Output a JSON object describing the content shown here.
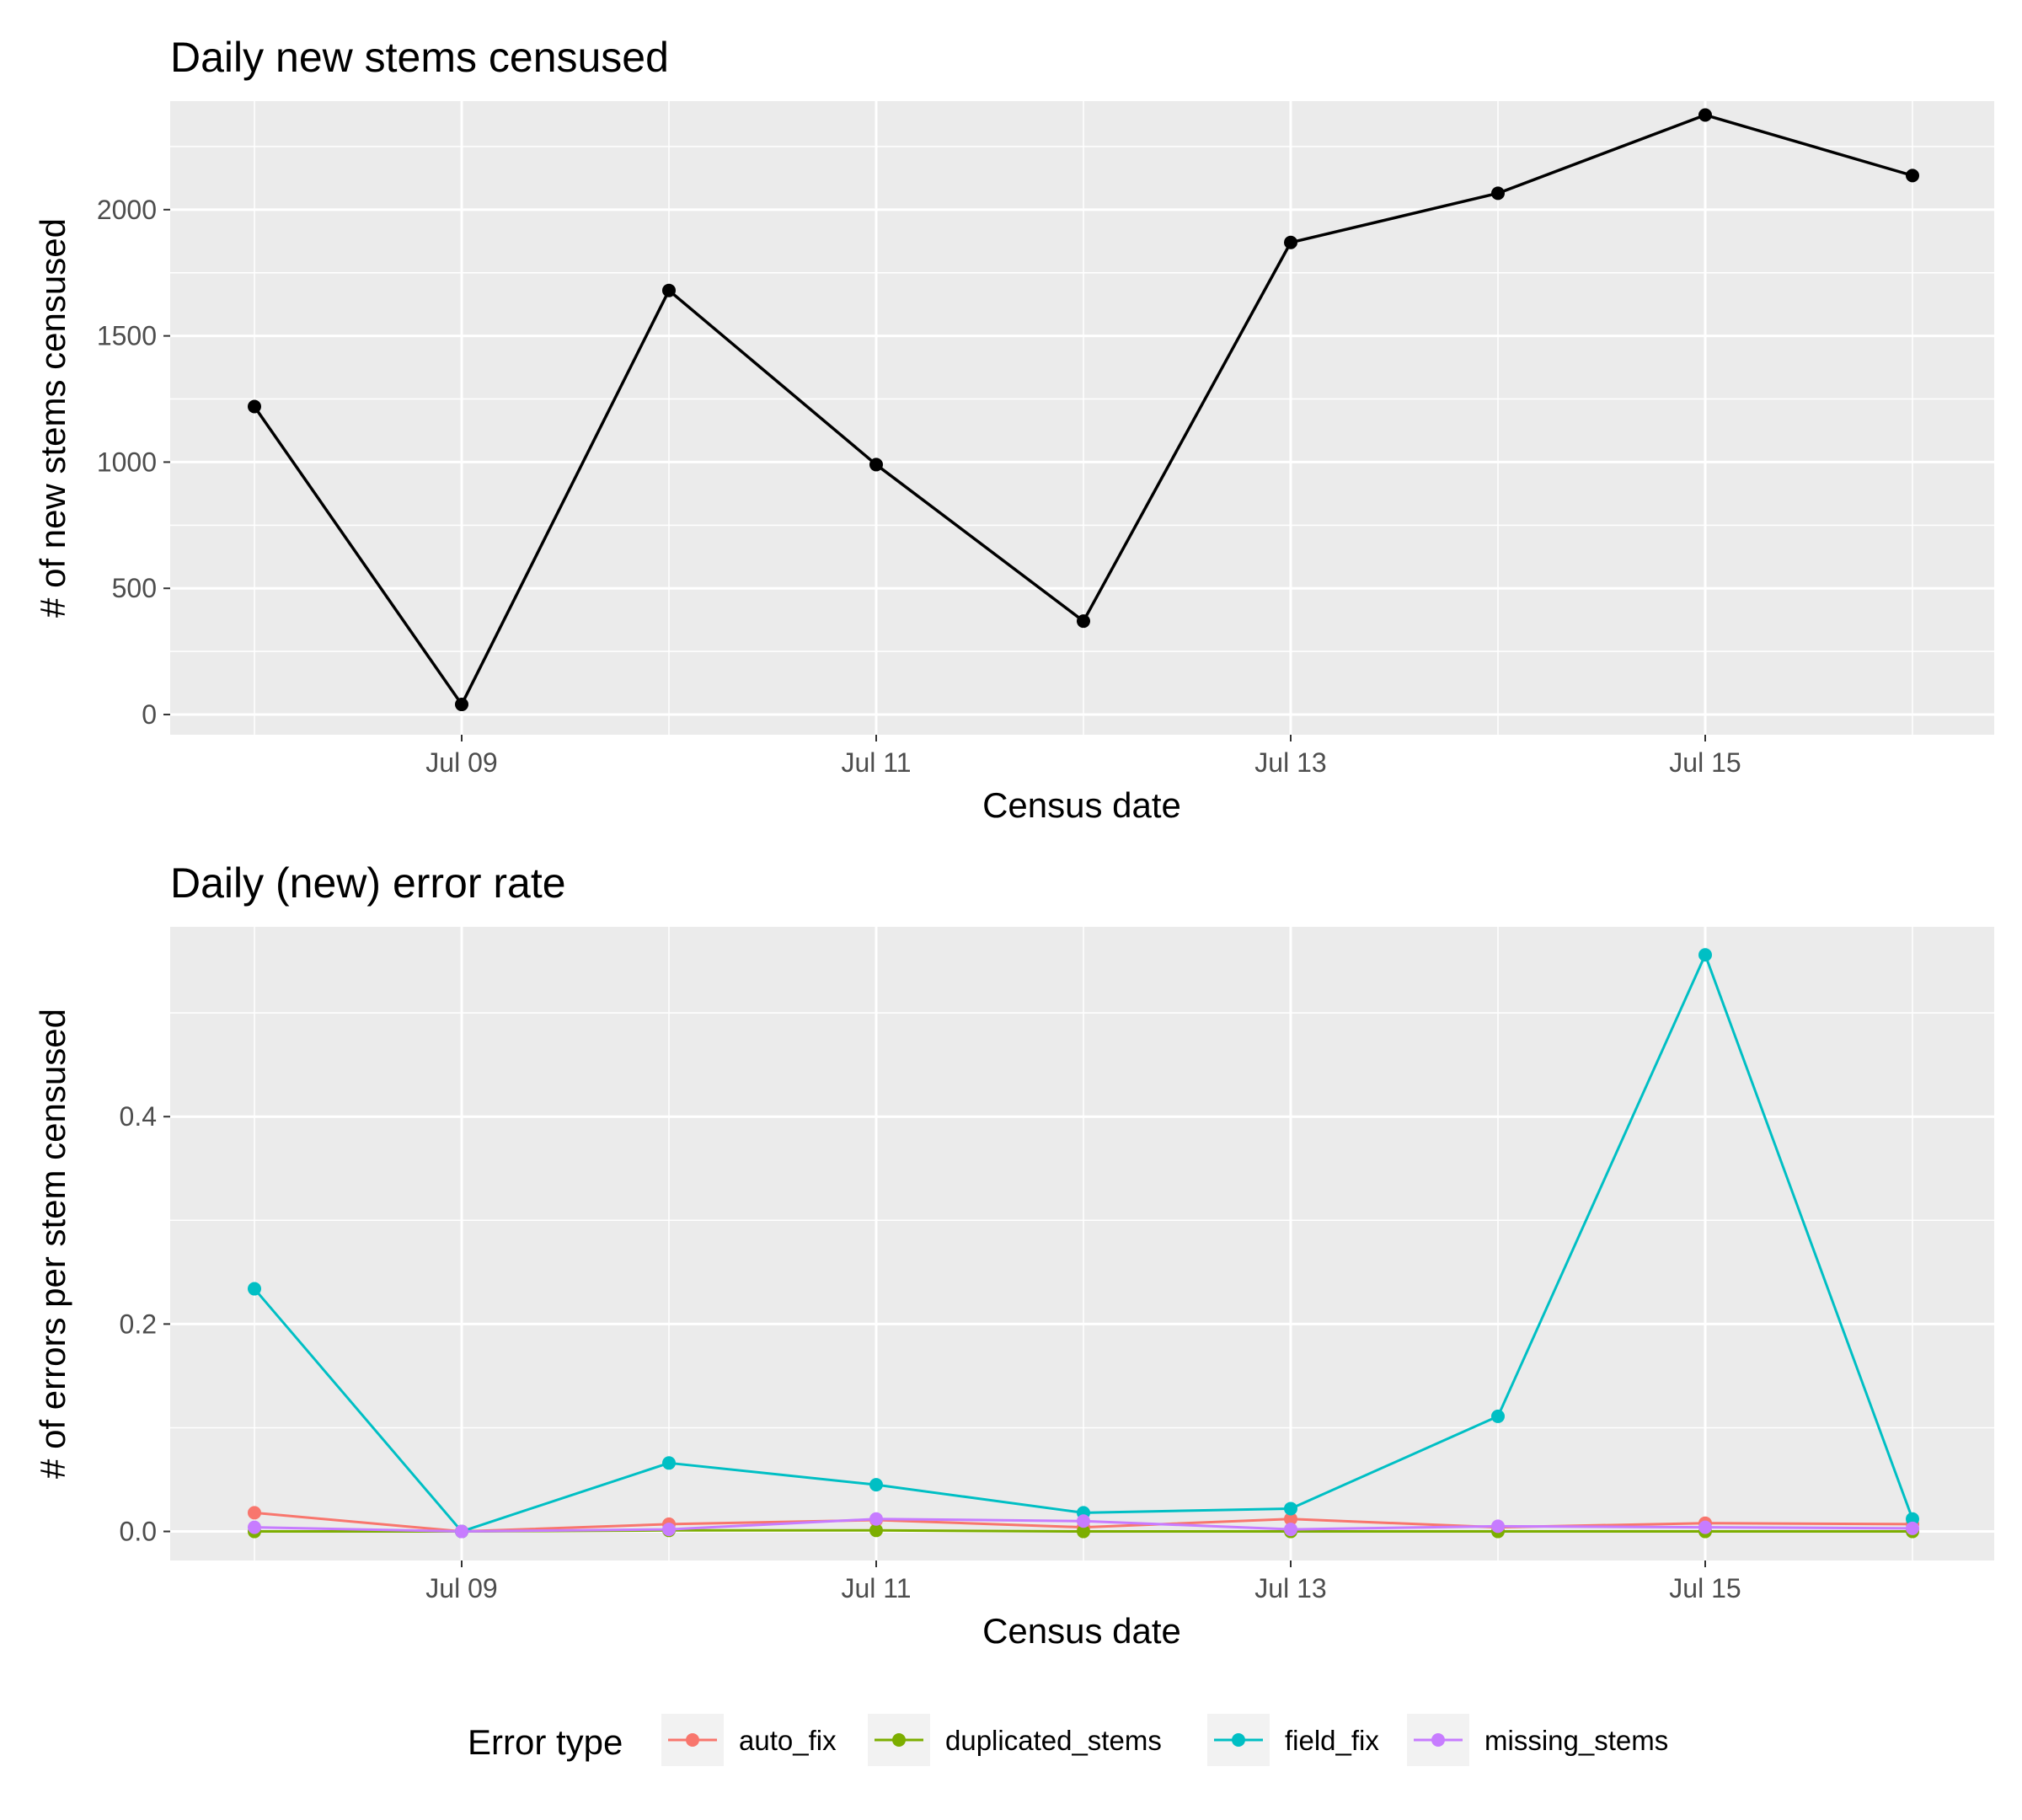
{
  "chart_data": [
    {
      "type": "line",
      "title": "Daily new stems censused",
      "xlabel": "Census date",
      "ylabel": "# of new stems censused",
      "x": [
        "Jul 08",
        "Jul 09",
        "Jul 10",
        "Jul 11",
        "Jul 12",
        "Jul 13",
        "Jul 14",
        "Jul 15",
        "Jul 16"
      ],
      "x_ticks": [
        "Jul 09",
        "Jul 11",
        "Jul 13",
        "Jul 15"
      ],
      "y_ticks": [
        0,
        500,
        1000,
        1500,
        2000
      ],
      "ylim": [
        -80,
        2430
      ],
      "grid": true,
      "series": [
        {
          "color": "#000000",
          "values": [
            1220,
            40,
            1680,
            990,
            370,
            1870,
            2065,
            2375,
            2135
          ]
        }
      ]
    },
    {
      "type": "line",
      "title": "Daily (new) error rate",
      "xlabel": "Census date",
      "ylabel": "# of errors per stem censused",
      "x": [
        "Jul 08",
        "Jul 09",
        "Jul 10",
        "Jul 11",
        "Jul 12",
        "Jul 13",
        "Jul 14",
        "Jul 15",
        "Jul 16"
      ],
      "x_ticks": [
        "Jul 09",
        "Jul 11",
        "Jul 13",
        "Jul 15"
      ],
      "y_ticks": [
        0.0,
        0.2,
        0.4
      ],
      "ylim": [
        -0.028,
        0.583
      ],
      "grid": true,
      "legend_title": "Error type",
      "legend_position": "bottom",
      "series": [
        {
          "name": "auto_fix",
          "color": "#F8766D",
          "values": [
            0.018,
            0.0,
            0.007,
            0.011,
            0.004,
            0.012,
            0.004,
            0.008,
            0.007
          ]
        },
        {
          "name": "duplicated_stems",
          "color": "#7CAE00",
          "values": [
            0.0,
            0.0,
            0.001,
            0.001,
            0.0,
            0.0,
            0.0,
            0.0,
            0.0
          ]
        },
        {
          "name": "field_fix",
          "color": "#00BFC4",
          "values": [
            0.234,
            0.0,
            0.066,
            0.045,
            0.018,
            0.022,
            0.111,
            0.556,
            0.012
          ]
        },
        {
          "name": "missing_stems",
          "color": "#C77CFF",
          "values": [
            0.004,
            0.0,
            0.002,
            0.012,
            0.01,
            0.002,
            0.005,
            0.004,
            0.003
          ]
        }
      ]
    }
  ]
}
